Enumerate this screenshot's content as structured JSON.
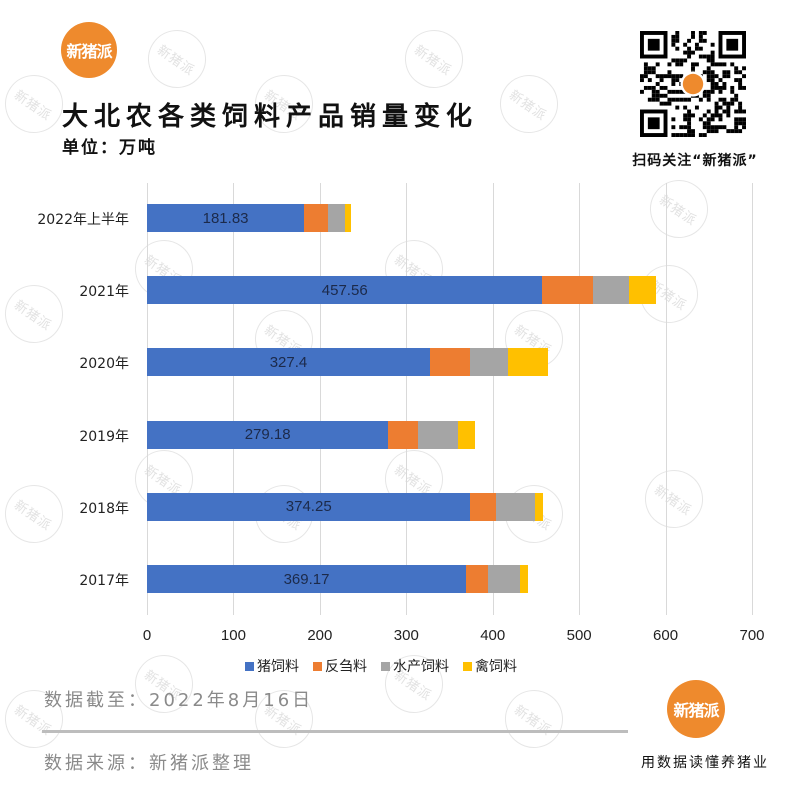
{
  "brand": {
    "name": "新猪派",
    "color": "#EE8A2D"
  },
  "header": {
    "title": "大北农各类饲料产品销量变化",
    "unit": "单位：万吨"
  },
  "qr": {
    "caption": "扫码关注“新猪派”"
  },
  "chart_data": {
    "type": "bar",
    "orientation": "horizontal",
    "stacked": true,
    "title": "大北农各类饲料产品销量变化",
    "subtitle": "单位：万吨",
    "xlabel": "",
    "ylabel": "",
    "xlim": [
      0,
      700
    ],
    "xticks": [
      0,
      100,
      200,
      300,
      400,
      500,
      600,
      700
    ],
    "grid": true,
    "legend_position": "bottom",
    "categories": [
      "2022年上半年",
      "2021年",
      "2020年",
      "2019年",
      "2018年",
      "2017年"
    ],
    "series": [
      {
        "name": "猪饲料",
        "color": "#4472C4",
        "values": [
          181.83,
          457.56,
          327.4,
          279.18,
          374.25,
          369.17
        ],
        "labeled": true
      },
      {
        "name": "反刍料",
        "color": "#ED7D31",
        "values": [
          28,
          58,
          46,
          34,
          30,
          25
        ],
        "labeled": false
      },
      {
        "name": "水产饲料",
        "color": "#A5A5A5",
        "values": [
          19,
          42,
          44,
          47,
          45,
          38
        ],
        "labeled": false
      },
      {
        "name": "禽饲料",
        "color": "#FFC000",
        "values": [
          7,
          31,
          47,
          19,
          9,
          9
        ],
        "labeled": false
      }
    ]
  },
  "footer": {
    "date": "数据截至：2022年8月16日",
    "source": "数据来源：新猪派整理",
    "slogan": "用数据读懂养猪业"
  }
}
